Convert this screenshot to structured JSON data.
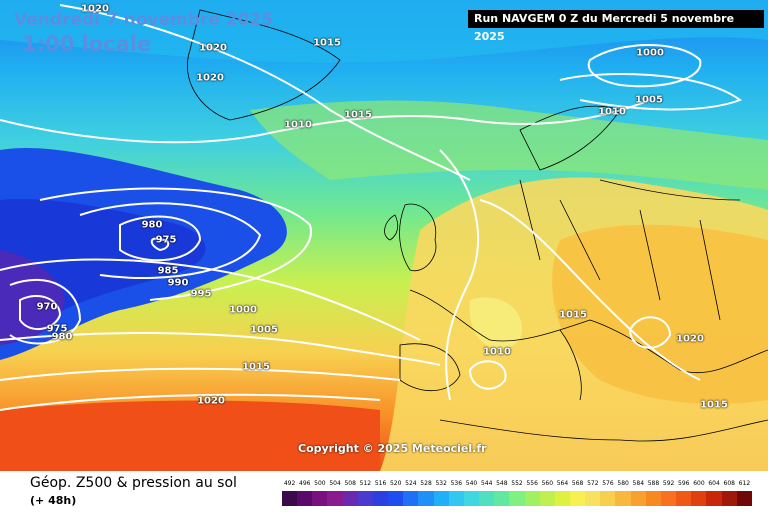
{
  "header": {
    "valid_date": "Vendredi 7 novembre 2025",
    "local_time": "1:00 locale",
    "run_info": "Run NAVGEM 0 Z du Mercredi 5 novembre 2025"
  },
  "map": {
    "copyright": "Copyright © 2025 Meteociel.fr",
    "isobar_labels": [
      {
        "text": "1020"
      },
      {
        "text": "1020"
      },
      {
        "text": "1020"
      },
      {
        "text": "1015"
      },
      {
        "text": "1000"
      },
      {
        "text": "1005"
      },
      {
        "text": "1010"
      },
      {
        "text": "1010"
      },
      {
        "text": "1015"
      },
      {
        "text": "980"
      },
      {
        "text": "975"
      },
      {
        "text": "985"
      },
      {
        "text": "990"
      },
      {
        "text": "995"
      },
      {
        "text": "970"
      },
      {
        "text": "975"
      },
      {
        "text": "980"
      },
      {
        "text": "1000"
      },
      {
        "text": "1005"
      },
      {
        "text": "1015"
      },
      {
        "text": "1020"
      },
      {
        "text": "1015"
      },
      {
        "text": "1010"
      },
      {
        "text": "1020"
      },
      {
        "text": "1015"
      }
    ]
  },
  "footer": {
    "product_title": "Géop. Z500 & pression au sol",
    "lead_time": "(+ 48h)",
    "legend_values": [
      "492",
      "496",
      "500",
      "504",
      "508",
      "512",
      "516",
      "520",
      "524",
      "528",
      "532",
      "536",
      "540",
      "544",
      "548",
      "552",
      "556",
      "560",
      "564",
      "568",
      "572",
      "576",
      "580",
      "584",
      "588",
      "592",
      "596",
      "600",
      "604",
      "608",
      "612"
    ],
    "legend_colors": [
      "#3a0a4a",
      "#5a0a6a",
      "#7a107f",
      "#8a1a8f",
      "#6a2ab0",
      "#4a3ad0",
      "#2a40e0",
      "#1e4ef0",
      "#1e70f5",
      "#1e90f8",
      "#20b0f8",
      "#30c8f0",
      "#40d8e0",
      "#50e0c0",
      "#60e8a0",
      "#80f080",
      "#a0f060",
      "#c0f050",
      "#e0f040",
      "#f8f050",
      "#f8e060",
      "#f8d050",
      "#f8b840",
      "#f8a030",
      "#f88820",
      "#f87020",
      "#f05818",
      "#e04010",
      "#c82808",
      "#a01808",
      "#700808"
    ]
  }
}
